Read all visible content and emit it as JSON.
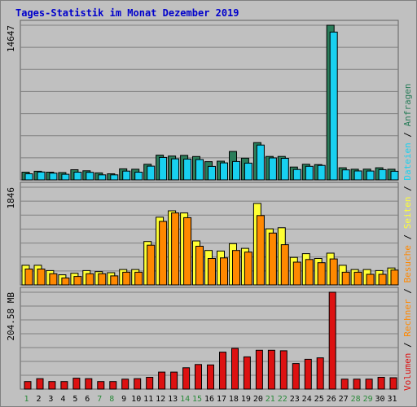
{
  "chart_data": {
    "type": "bar",
    "title": "Tages-Statistik im Monat Dezember 2019",
    "categories": [
      "1",
      "2",
      "3",
      "4",
      "5",
      "6",
      "7",
      "8",
      "9",
      "10",
      "11",
      "12",
      "13",
      "14",
      "15",
      "16",
      "17",
      "18",
      "19",
      "20",
      "21",
      "22",
      "23",
      "24",
      "25",
      "26",
      "27",
      "28",
      "29",
      "30",
      "31"
    ],
    "weekend_categories": [
      "1",
      "7",
      "8",
      "14",
      "15",
      "21",
      "22",
      "28",
      "29"
    ],
    "colors": {
      "background": "#c0c0c0",
      "title": "#0000cc",
      "anfragen": "#2a7d5a",
      "dateien": "#18d0f0",
      "seiten": "#ffff33",
      "besuche": "#ff8800",
      "rechner": "#ff8800",
      "volumen": "#dd1111",
      "weekday_tick": "#000000",
      "weekend_tick": "#2a8a3a",
      "grid": "#808080"
    },
    "panels": [
      {
        "id": "top",
        "max_label": "14647",
        "ylim": [
          0,
          14647
        ],
        "series": [
          {
            "name": "Anfragen",
            "values": [
              730,
              820,
              730,
              690,
              960,
              860,
              660,
              580,
              1050,
              1010,
              1480,
              2340,
              2260,
              2320,
              2210,
              1730,
              1770,
              2690,
              2060,
              3530,
              2220,
              2220,
              1220,
              1480,
              1450,
              14647,
              1150,
              1010,
              1020,
              1150,
              1010
            ]
          },
          {
            "name": "Dateien",
            "values": [
              580,
              750,
              640,
              530,
              730,
              720,
              480,
              480,
              830,
              730,
              1300,
              2130,
              2000,
              1970,
              1930,
              1280,
              1610,
              1740,
              1590,
              3300,
              2080,
              2040,
              990,
              1290,
              1370,
              14000,
              950,
              850,
              840,
              970,
              820
            ]
          }
        ],
        "legend": [
          "Anfragen",
          "Dateien"
        ]
      },
      {
        "id": "middle",
        "max_label": "1846",
        "ylim": [
          0,
          1846
        ],
        "series": [
          {
            "name": "Seiten",
            "values": [
              370,
              370,
              270,
              190,
              220,
              270,
              250,
              230,
              290,
              290,
              820,
              1280,
              1400,
              1360,
              830,
              650,
              640,
              780,
              690,
              1540,
              1060,
              1080,
              520,
              590,
              500,
              600,
              370,
              290,
              290,
              270,
              320
            ]
          },
          {
            "name": "Besuche",
            "values": [
              300,
              300,
              210,
              130,
              160,
              210,
              210,
              170,
              240,
              240,
              750,
              1200,
              1360,
              1270,
              730,
              500,
              510,
              650,
              620,
              1310,
              980,
              760,
              430,
              480,
              420,
              490,
              240,
              240,
              200,
              200,
              280
            ]
          }
        ],
        "legend": [
          "Seiten",
          "Besuche"
        ]
      },
      {
        "id": "bottom",
        "max_label": "204.58 MB",
        "ylim": [
          0,
          204.58
        ],
        "series": [
          {
            "name": "Volumen",
            "values": [
              16,
              22,
              16,
              16,
              23,
              22,
              16,
              16,
              21,
              22,
              25,
              36,
              36,
              45,
              52,
              51,
              78,
              86,
              68,
              82,
              82,
              81,
              54,
              63,
              66,
              204.58,
              21,
              21,
              21,
              25,
              24
            ]
          }
        ],
        "legend": [
          "Volumen",
          "Rechner",
          "Besuche",
          "Seiten",
          "Dateien",
          "Anfragen"
        ]
      }
    ]
  }
}
